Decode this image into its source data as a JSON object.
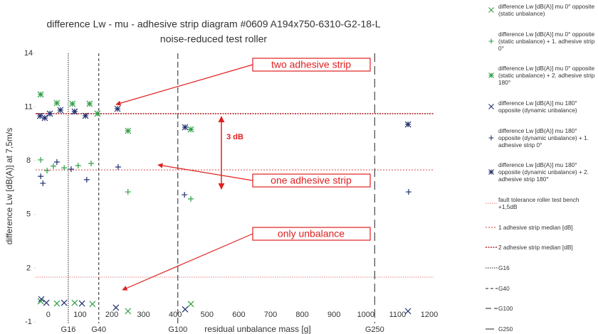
{
  "chart_data": {
    "type": "scatter",
    "title": "difference Lw - mu - adhesive strip diagram #0609 A194x750-6310-G2-18-L",
    "subtitle": "noise-reduced test roller",
    "xlabel": "residual unbalance mass [g]",
    "ylabel": "difference Lw [dB(A)] at 7,5m/s",
    "xlim": [
      -40,
      1200
    ],
    "xticks": [
      0,
      100,
      200,
      300,
      400,
      500,
      600,
      700,
      800,
      900,
      1000,
      1100,
      1200
    ],
    "ylim": [
      -1,
      14
    ],
    "yticks": [
      -1,
      2,
      5,
      8,
      11,
      14
    ],
    "grid": false,
    "legend": "right",
    "series": [
      {
        "name": "difference Lw [dB(A)]  mu 0° opposite (static unbalance)",
        "color": "#2f9e44",
        "marker": "x",
        "x": [
          -24,
          27,
          83,
          139,
          251,
          449
        ],
        "values": [
          0.15,
          0.03,
          0.07,
          0.0,
          -0.4,
          0.0
        ]
      },
      {
        "name": "difference Lw [dB(A)]  mu 0° opposite (static unbalance) + 1. adhesive strip 0°",
        "color": "#2f9e44",
        "marker": "+",
        "x": [
          -24,
          -4,
          16,
          50,
          94,
          135,
          251,
          449
        ],
        "values": [
          8.05,
          7.45,
          7.7,
          7.6,
          7.73,
          7.85,
          6.26,
          5.87
        ]
      },
      {
        "name": "difference Lw [dB(A)]  mu 0° opposite (static unbalance) + 2. adhesive strip 180°",
        "color": "#2f9e44",
        "marker": "star",
        "x": [
          -24,
          27,
          76,
          130,
          155,
          251,
          449
        ],
        "values": [
          11.7,
          11.22,
          11.18,
          11.18,
          10.63,
          9.67,
          9.75
        ]
      },
      {
        "name": "difference Lw [dB(A)]  mu 180° opposite (dynamic unbalance)",
        "color": "#1f2f6e",
        "marker": "x",
        "x": [
          -22,
          -6,
          50,
          106,
          213,
          431,
          1133
        ],
        "values": [
          0.27,
          0.07,
          0.07,
          0.03,
          -0.2,
          -0.3,
          -0.4
        ]
      },
      {
        "name": "difference Lw [dB(A)]  mu 180° opposite (dynamic unbalance) + 1. adhesive strip 0°",
        "color": "#1f2f6e",
        "marker": "+",
        "x": [
          -24,
          -17,
          27,
          72,
          121,
          220,
          429,
          1135
        ],
        "values": [
          7.13,
          6.74,
          7.93,
          7.53,
          6.94,
          7.65,
          6.1,
          6.26
        ]
      },
      {
        "name": "difference Lw [dB(A)]  mu 180° opposite (dynamic unbalance) + 2. adhesive strip 180°",
        "color": "#1f2f6e",
        "marker": "star",
        "x": [
          -26,
          -11,
          5,
          38,
          83,
          117,
          218,
          431,
          1133
        ],
        "values": [
          10.5,
          10.39,
          10.63,
          10.83,
          10.75,
          10.51,
          10.9,
          9.87,
          10.03
        ]
      }
    ],
    "reference_lines": [
      {
        "name": "fault tolerance roller test bench +1,5dB",
        "value": 1.5,
        "color": "#e05a5a"
      },
      {
        "name": "1 adhesive strip median [dB]",
        "value": 7.49,
        "color": "#d03030"
      },
      {
        "name": "2 adhesive strip median [dB]",
        "value": 10.63,
        "color": "#a00000"
      }
    ],
    "vertical_lines": [
      {
        "name": "G16",
        "value": 63
      },
      {
        "name": "G40",
        "value": 159
      },
      {
        "name": "G100",
        "value": 408
      },
      {
        "name": "G250",
        "value": 1028
      }
    ],
    "annotations": [
      "two adhesive strip",
      "one adhesive strip",
      "only unbalance",
      "3 dB"
    ]
  }
}
